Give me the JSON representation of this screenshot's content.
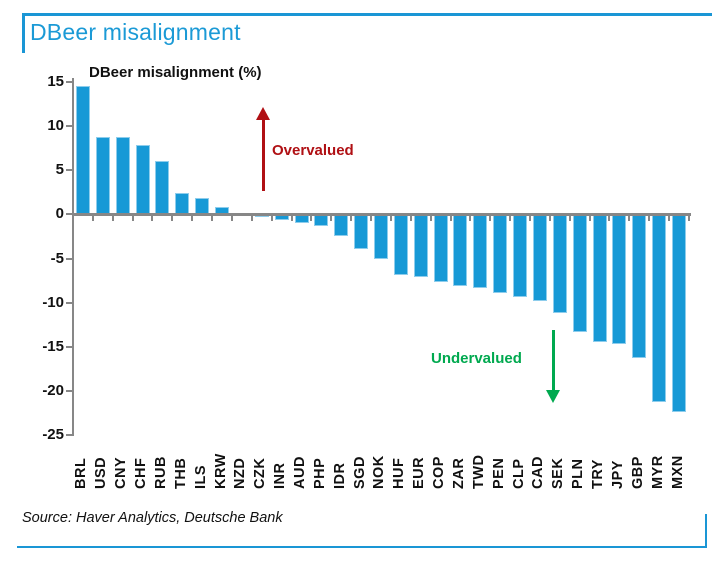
{
  "header": {
    "title": "DBeer misalignment"
  },
  "chart_data": {
    "type": "bar",
    "title": "DBeer misalignment (%)",
    "categories": [
      "BRL",
      "USD",
      "CNY",
      "CHF",
      "RUB",
      "THB",
      "ILS",
      "KRW",
      "NZD",
      "CZK",
      "INR",
      "AUD",
      "PHP",
      "IDR",
      "SGD",
      "NOK",
      "HUF",
      "EUR",
      "COP",
      "ZAR",
      "TWD",
      "PEN",
      "CLP",
      "CAD",
      "SEK",
      "PLN",
      "TRY",
      "JPY",
      "GBP",
      "MYR",
      "MXN"
    ],
    "values": [
      14.5,
      8.8,
      8.7,
      7.8,
      6.0,
      2.4,
      1.9,
      0.8,
      0.0,
      -0.1,
      -0.5,
      -0.9,
      -1.2,
      -2.3,
      -3.8,
      -5.0,
      -6.7,
      -7.0,
      -7.6,
      -8.0,
      -8.2,
      -8.8,
      -9.2,
      -9.7,
      -11.0,
      -13.2,
      -14.3,
      -14.6,
      -16.1,
      -21.1,
      -22.3
    ],
    "yticks": [
      15,
      10,
      5,
      0,
      -5,
      -10,
      -15,
      -20,
      -25
    ],
    "ylim": [
      -25,
      15
    ],
    "xlabel": "",
    "ylabel": "",
    "grid": false,
    "legend": false,
    "bar_color": "#1799d6",
    "annotations": [
      {
        "text": "Overvalued",
        "color": "#b01014",
        "arrow": "up"
      },
      {
        "text": "Undervalued",
        "color": "#00a94f",
        "arrow": "down"
      }
    ]
  },
  "footer": {
    "source": "Source: Haver Analytics, Deutsche Bank"
  },
  "colors": {
    "accent_blue": "#1a96d5",
    "axis_gray": "#878787",
    "overvalued_red": "#b01014",
    "undervalued_green": "#00a94f"
  }
}
